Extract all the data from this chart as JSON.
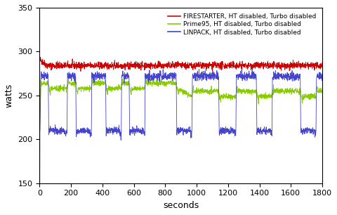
{
  "title": "",
  "xlabel": "seconds",
  "ylabel": "watts",
  "xlim": [
    0,
    1800
  ],
  "ylim": [
    150,
    350
  ],
  "yticks": [
    150,
    200,
    250,
    300,
    350
  ],
  "xticks": [
    0,
    200,
    400,
    600,
    800,
    1000,
    1200,
    1400,
    1600,
    1800
  ],
  "legend": [
    {
      "label": "FIRESTARTER, HT disabled, Turbo disabled",
      "color": "#cc0000"
    },
    {
      "label": "Prime95, HT disabled, Turbo disabled",
      "color": "#88cc00"
    },
    {
      "label": "LINPACK, HT disabled, Turbo disabled",
      "color": "#4444cc"
    }
  ],
  "firestarter_base": 284,
  "firestarter_noise": 2.0,
  "prime95_base_early": 264,
  "prime95_base_late": 255,
  "prime95_noise": 1.5,
  "linpack_high": 272,
  "linpack_low": 210,
  "linpack_high_noise": 2.5,
  "linpack_low_noise": 2.0,
  "drop_starts": [
    55,
    230,
    420,
    570,
    870,
    1140,
    1380,
    1660
  ],
  "drop_ends": [
    175,
    330,
    520,
    670,
    970,
    1250,
    1480,
    1760
  ],
  "total_time": 1800,
  "background_color": "#ffffff",
  "figsize": [
    4.8,
    3.06
  ],
  "dpi": 100
}
